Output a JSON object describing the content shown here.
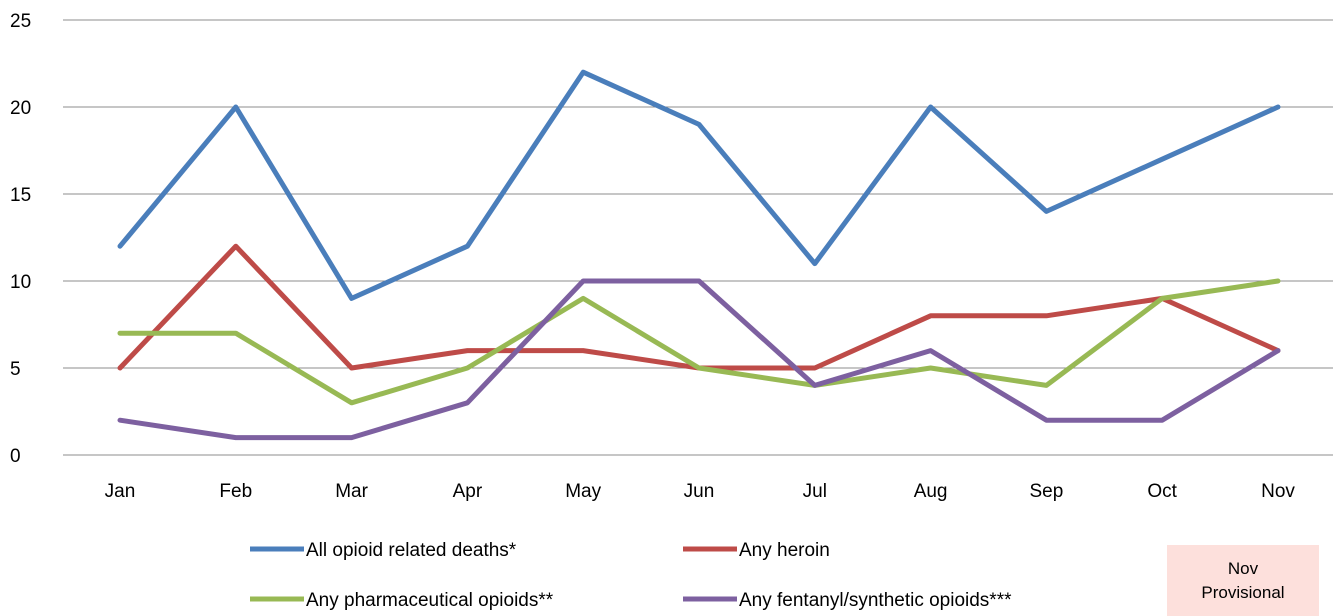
{
  "chart_data": {
    "type": "line",
    "title": "",
    "xlabel": "",
    "ylabel": "",
    "categories": [
      "Jan",
      "Feb",
      "Mar",
      "Apr",
      "May",
      "Jun",
      "Jul",
      "Aug",
      "Sep",
      "Oct",
      "Nov"
    ],
    "ylim": [
      0,
      25
    ],
    "yticks": [
      0,
      5,
      10,
      15,
      20,
      25
    ],
    "grid": true,
    "legend_position": "bottom",
    "series": [
      {
        "name": "All opioid related deaths*",
        "color": "#4a7ebb",
        "values": [
          12,
          20,
          9,
          12,
          22,
          19,
          11,
          20,
          14,
          17,
          20
        ]
      },
      {
        "name": "Any heroin",
        "color": "#be4b48",
        "values": [
          5,
          12,
          5,
          6,
          6,
          5,
          5,
          8,
          8,
          9,
          6
        ]
      },
      {
        "name": "Any pharmaceutical opioids**",
        "color": "#98b954",
        "values": [
          7,
          7,
          3,
          5,
          9,
          5,
          4,
          5,
          4,
          9,
          10
        ]
      },
      {
        "name": "Any fentanyl/synthetic opioids***",
        "color": "#7d60a0",
        "values": [
          2,
          1,
          1,
          3,
          10,
          10,
          4,
          6,
          2,
          2,
          6
        ]
      }
    ]
  },
  "note": {
    "line1": "Nov",
    "line2": "Provisional"
  }
}
